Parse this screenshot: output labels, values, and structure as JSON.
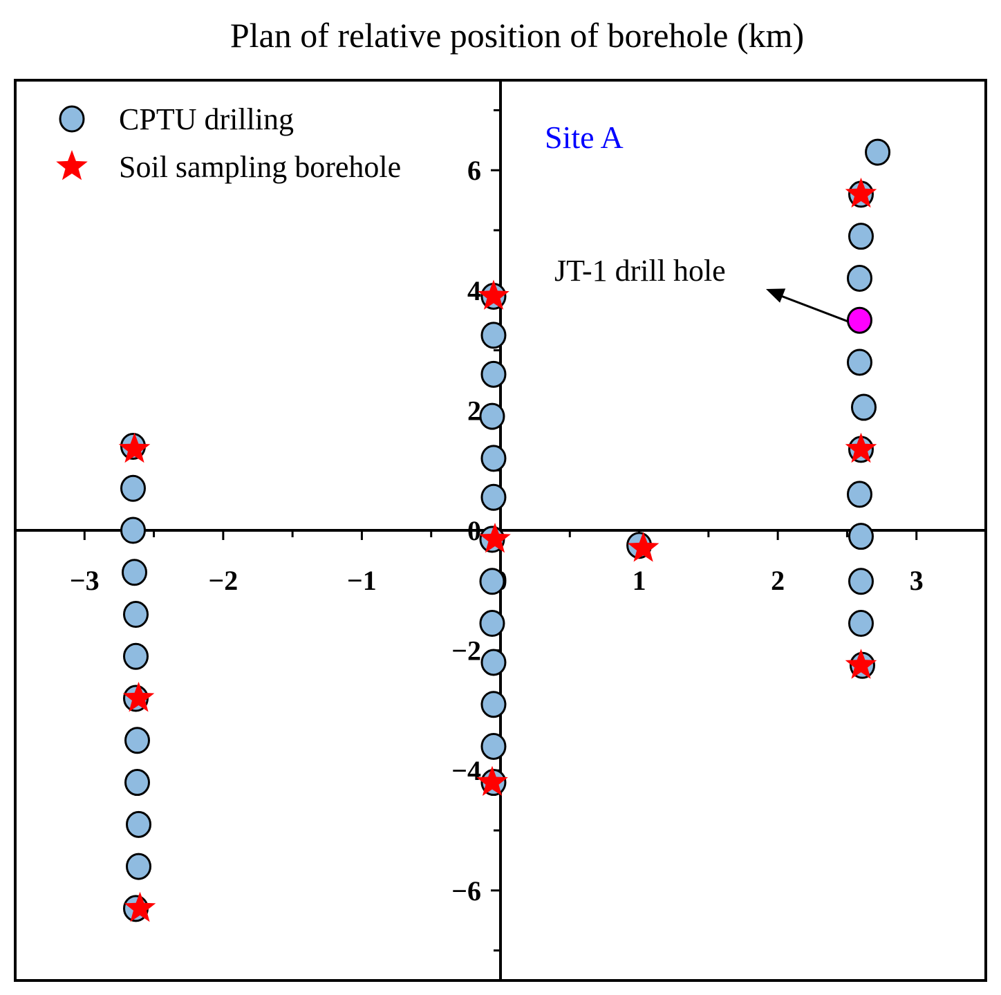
{
  "chart_data": {
    "type": "scatter",
    "title": "Plan of relative position of borehole (km)",
    "xlim": [
      -3.5,
      3.5
    ],
    "ylim": [
      -7.5,
      7.5
    ],
    "x_ticks": [
      -3,
      -2,
      -1,
      0,
      1,
      2,
      3
    ],
    "y_ticks": [
      -6,
      -4,
      -2,
      0,
      2,
      4,
      6
    ],
    "x_tick_labels": [
      "−3",
      "−2",
      "−1",
      "0",
      "1",
      "2",
      "3"
    ],
    "y_tick_labels": [
      "−6",
      "−4",
      "−2",
      "0",
      "2",
      "4",
      "6"
    ],
    "grid": false,
    "legend_position": "top-left",
    "series": [
      {
        "name": "CPTU drilling",
        "marker": "circle",
        "color": "#8fbbe0",
        "points": [
          [
            -2.65,
            1.4
          ],
          [
            -2.65,
            0.7
          ],
          [
            -2.65,
            0.0
          ],
          [
            -2.64,
            -0.7
          ],
          [
            -2.63,
            -1.4
          ],
          [
            -2.63,
            -2.1
          ],
          [
            -2.63,
            -2.8
          ],
          [
            -2.62,
            -3.5
          ],
          [
            -2.62,
            -4.2
          ],
          [
            -2.61,
            -4.9
          ],
          [
            -2.61,
            -5.6
          ],
          [
            -2.63,
            -6.3
          ],
          [
            -0.05,
            3.9
          ],
          [
            -0.05,
            3.25
          ],
          [
            -0.05,
            2.6
          ],
          [
            -0.06,
            1.9
          ],
          [
            -0.05,
            1.2
          ],
          [
            -0.05,
            0.55
          ],
          [
            -0.06,
            -0.15
          ],
          [
            -0.06,
            -0.85
          ],
          [
            -0.06,
            -1.55
          ],
          [
            -0.05,
            -2.2
          ],
          [
            -0.05,
            -2.9
          ],
          [
            -0.05,
            -3.6
          ],
          [
            -0.05,
            -4.2
          ],
          [
            1.0,
            -0.25
          ],
          [
            2.6,
            5.6
          ],
          [
            2.6,
            4.9
          ],
          [
            2.59,
            4.2
          ],
          [
            2.59,
            2.8
          ],
          [
            2.62,
            2.05
          ],
          [
            2.6,
            1.35
          ],
          [
            2.59,
            0.6
          ],
          [
            2.6,
            -0.1
          ],
          [
            2.6,
            -0.85
          ],
          [
            2.6,
            -1.55
          ],
          [
            2.61,
            -2.25
          ],
          [
            2.72,
            6.3
          ]
        ]
      },
      {
        "name": "Soil sampling borehole",
        "marker": "star",
        "color": "#ff0000",
        "points": [
          [
            -2.64,
            1.35
          ],
          [
            -2.61,
            -2.8
          ],
          [
            -2.6,
            -6.3
          ],
          [
            -0.05,
            3.9
          ],
          [
            -0.04,
            -0.15
          ],
          [
            -0.06,
            -4.2
          ],
          [
            1.03,
            -0.3
          ],
          [
            2.6,
            5.6
          ],
          [
            2.6,
            1.35
          ],
          [
            2.6,
            -2.25
          ]
        ]
      },
      {
        "name": "",
        "marker": "circle",
        "color": "#ff00ff",
        "points": [
          [
            2.59,
            3.5
          ]
        ]
      }
    ],
    "annotations": [
      {
        "text": "JT-1 drill hole",
        "points_to": [
          2.59,
          3.5
        ]
      },
      {
        "text": "Site A",
        "color": "#0000ff"
      }
    ]
  }
}
